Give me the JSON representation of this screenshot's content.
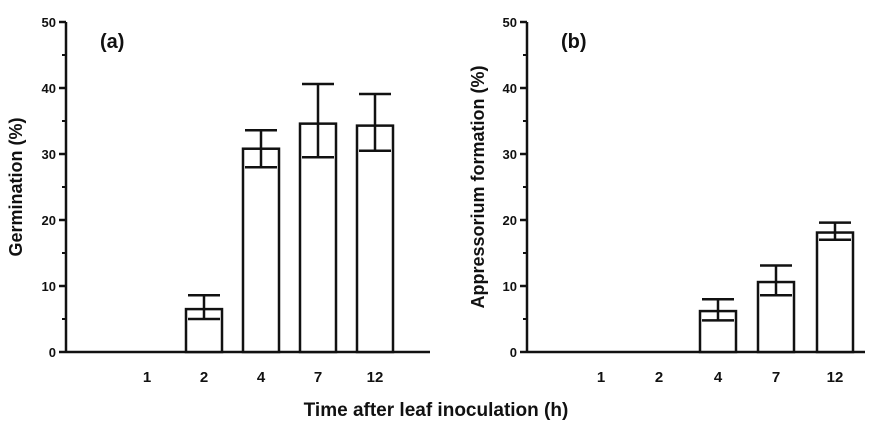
{
  "figure": {
    "xlabel": "Time after leaf inoculation (h)"
  },
  "chart_data": [
    {
      "type": "bar",
      "panel_label": "(a)",
      "categories": [
        "1",
        "2",
        "4",
        "7",
        "12"
      ],
      "values": [
        0,
        6.5,
        30.8,
        34.6,
        34.3
      ],
      "error_low": [
        0,
        5.0,
        28.0,
        29.5,
        30.5
      ],
      "error_high": [
        0,
        8.6,
        33.6,
        40.6,
        39.1
      ],
      "ylabel": "Germination  (%)",
      "ylim": [
        0,
        50
      ],
      "yticks": [
        "0",
        "10",
        "20",
        "30",
        "40",
        "50"
      ],
      "grid": false,
      "bar_fill": "#ffffff",
      "stroke": "#111111"
    },
    {
      "type": "bar",
      "panel_label": "(b)",
      "categories": [
        "1",
        "2",
        "4",
        "7",
        "12"
      ],
      "values": [
        0,
        0,
        6.2,
        10.6,
        18.1
      ],
      "error_low": [
        0,
        0,
        4.8,
        8.6,
        17.0
      ],
      "error_high": [
        0,
        0,
        8.0,
        13.1,
        19.6
      ],
      "ylabel": "Appressorium formation (%)",
      "ylim": [
        0,
        50
      ],
      "yticks": [
        "0",
        "10",
        "20",
        "30",
        "40",
        "50"
      ],
      "grid": false,
      "bar_fill": "#ffffff",
      "stroke": "#111111"
    }
  ]
}
